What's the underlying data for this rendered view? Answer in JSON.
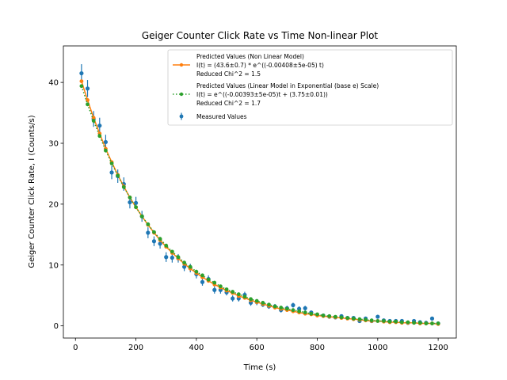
{
  "chart_data": {
    "type": "scatter",
    "title": "Geiger Counter Click Rate vs Time Non-linear Plot",
    "xlabel": "Time (s)",
    "ylabel": "Geiger Counter Click Rate, I (Counts/s)",
    "xlim": [
      -40,
      1260
    ],
    "ylim": [
      -2,
      46
    ],
    "xticks": [
      0,
      200,
      400,
      600,
      800,
      1000,
      1200
    ],
    "yticks": [
      0,
      10,
      20,
      30,
      40
    ],
    "grid": false,
    "legend_position": "upper-right",
    "series": [
      {
        "name_lines": [
          "Predicted Values (Non Linear Model)",
          "I(t) = (43.6±0.7) * e^((-0.00408±5e-05) t)",
          "Reduced Chi^2 = 1.5"
        ],
        "kind": "line",
        "marker": "circle",
        "color": "#ff7f0e",
        "x": [
          20,
          40,
          60,
          80,
          100,
          120,
          140,
          160,
          180,
          200,
          220,
          240,
          260,
          280,
          300,
          320,
          340,
          360,
          380,
          400,
          420,
          440,
          460,
          480,
          500,
          520,
          540,
          560,
          580,
          600,
          620,
          640,
          660,
          680,
          700,
          720,
          740,
          760,
          780,
          800,
          820,
          840,
          860,
          880,
          900,
          920,
          940,
          960,
          980,
          1000,
          1020,
          1040,
          1060,
          1080,
          1100,
          1120,
          1140,
          1160,
          1180,
          1200
        ],
        "y": [
          40.2,
          37.1,
          34.2,
          31.6,
          29.1,
          26.9,
          24.8,
          22.9,
          21.1,
          19.5,
          18.0,
          16.6,
          15.3,
          14.1,
          13.0,
          12.0,
          11.1,
          10.2,
          9.4,
          8.7,
          8.0,
          7.4,
          6.8,
          6.3,
          5.8,
          5.4,
          4.9,
          4.6,
          4.2,
          3.9,
          3.6,
          3.3,
          3.0,
          2.8,
          2.6,
          2.4,
          2.2,
          2.0,
          1.9,
          1.7,
          1.6,
          1.5,
          1.4,
          1.3,
          1.2,
          1.1,
          1.0,
          0.9,
          0.8,
          0.8,
          0.7,
          0.6,
          0.6,
          0.5,
          0.5,
          0.5,
          0.4,
          0.4,
          0.4,
          0.3
        ]
      },
      {
        "name_lines": [
          "Predicted Values (Linear Model in Exponential (base e) Scale)",
          "I(t) = e^((-0.00393±5e-05)t + (3.75±0.01))",
          "Reduced Chi^2 = 1.7"
        ],
        "kind": "dotted-line",
        "marker": "circle",
        "color": "#2ca02c",
        "x": [
          20,
          40,
          60,
          80,
          100,
          120,
          140,
          160,
          180,
          200,
          220,
          240,
          260,
          280,
          300,
          320,
          340,
          360,
          380,
          400,
          420,
          440,
          460,
          480,
          500,
          520,
          540,
          560,
          580,
          600,
          620,
          640,
          660,
          680,
          700,
          720,
          740,
          760,
          780,
          800,
          820,
          840,
          860,
          880,
          900,
          920,
          940,
          960,
          980,
          1000,
          1020,
          1040,
          1060,
          1080,
          1100,
          1120,
          1140,
          1160,
          1180,
          1200
        ],
        "y": [
          39.4,
          36.4,
          33.7,
          31.2,
          28.8,
          26.7,
          24.7,
          22.8,
          21.1,
          19.5,
          18.0,
          16.7,
          15.4,
          14.3,
          13.2,
          12.2,
          11.3,
          10.4,
          9.7,
          8.9,
          8.3,
          7.6,
          7.1,
          6.5,
          6.0,
          5.6,
          5.2,
          4.8,
          4.4,
          4.1,
          3.8,
          3.5,
          3.2,
          3.0,
          2.8,
          2.6,
          2.4,
          2.2,
          2.0,
          1.9,
          1.7,
          1.6,
          1.5,
          1.4,
          1.3,
          1.2,
          1.1,
          1.0,
          0.9,
          0.8,
          0.8,
          0.7,
          0.7,
          0.6,
          0.6,
          0.5,
          0.5,
          0.4,
          0.4,
          0.4
        ]
      },
      {
        "name_lines": [
          "Measured Values"
        ],
        "kind": "errorbar",
        "marker": "circle",
        "color": "#1f77b4",
        "x": [
          20,
          40,
          60,
          80,
          100,
          120,
          140,
          160,
          180,
          200,
          220,
          240,
          260,
          280,
          300,
          320,
          340,
          360,
          380,
          400,
          420,
          440,
          460,
          480,
          500,
          520,
          540,
          560,
          580,
          600,
          620,
          640,
          660,
          680,
          700,
          720,
          740,
          760,
          780,
          800,
          820,
          840,
          860,
          880,
          900,
          920,
          940,
          960,
          980,
          1000,
          1020,
          1040,
          1060,
          1080,
          1100,
          1120,
          1140,
          1160,
          1180,
          1200
        ],
        "y": [
          41.5,
          39.0,
          34.0,
          32.9,
          30.2,
          25.2,
          24.6,
          23.3,
          20.3,
          20.2,
          18.0,
          15.3,
          13.9,
          13.5,
          11.3,
          11.2,
          11.1,
          9.7,
          9.5,
          8.5,
          7.2,
          7.7,
          5.9,
          5.9,
          5.5,
          4.5,
          4.5,
          5.1,
          3.8,
          3.9,
          3.5,
          3.2,
          3.2,
          2.6,
          2.9,
          3.4,
          2.8,
          2.9,
          2.2,
          1.8,
          1.7,
          1.5,
          1.4,
          1.6,
          1.3,
          1.3,
          0.8,
          1.2,
          0.8,
          1.5,
          0.9,
          0.8,
          0.8,
          0.8,
          0.5,
          0.8,
          0.6,
          0.5,
          1.2,
          0.4
        ],
        "yerr": [
          1.5,
          1.4,
          1.3,
          1.3,
          1.2,
          1.1,
          1.1,
          1.1,
          1.0,
          1.0,
          0.9,
          0.9,
          0.8,
          0.8,
          0.8,
          0.8,
          0.7,
          0.7,
          0.7,
          0.7,
          0.6,
          0.6,
          0.6,
          0.6,
          0.5,
          0.5,
          0.5,
          0.5,
          0.5,
          0.5,
          0.4,
          0.4,
          0.4,
          0.4,
          0.4,
          0.4,
          0.4,
          0.4,
          0.3,
          0.3,
          0.3,
          0.3,
          0.3,
          0.3,
          0.3,
          0.3,
          0.3,
          0.3,
          0.3,
          0.3,
          0.3,
          0.3,
          0.3,
          0.3,
          0.3,
          0.3,
          0.3,
          0.3,
          0.3,
          0.3
        ]
      }
    ]
  }
}
